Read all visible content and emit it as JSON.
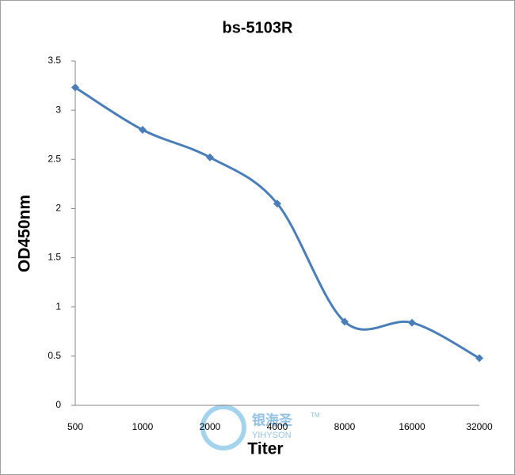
{
  "chart_data": {
    "type": "line",
    "title": "bs-5103R",
    "x_label": "Titer",
    "y_label": "OD450nm",
    "categories": [
      "500",
      "1000",
      "2000",
      "4000",
      "8000",
      "16000",
      "32000"
    ],
    "series": [
      {
        "name": "bs-5103R",
        "color": "#4a7ebb",
        "values": [
          3.23,
          2.8,
          2.52,
          2.05,
          0.85,
          0.84,
          0.48
        ]
      }
    ],
    "ylim": [
      0,
      3.5
    ],
    "yticks": [
      0,
      0.5,
      1,
      1.5,
      2,
      2.5,
      3,
      3.5
    ],
    "grid": false,
    "smooth": true,
    "watermark": {
      "cn": "银海圣",
      "en": "YIHYSON",
      "tm": "TM"
    }
  }
}
